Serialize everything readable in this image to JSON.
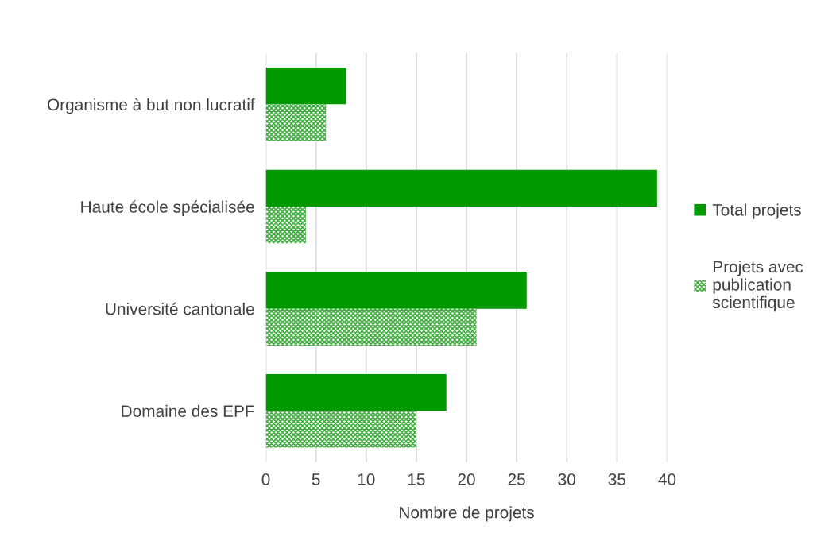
{
  "chart_data": {
    "type": "bar",
    "orientation": "horizontal",
    "xlabel": "Nombre de projets",
    "categories": [
      "Organisme à but non lucratif",
      "Haute école spécialisée",
      "Université cantonale",
      "Domaine des EPF"
    ],
    "series": [
      {
        "name": "Total projets",
        "color": "#009900",
        "values": [
          8,
          39,
          26,
          18
        ]
      },
      {
        "name": "Projets avec\npublication\nscientifique",
        "color": "#3fae3f",
        "values": [
          6,
          4,
          21,
          15
        ]
      }
    ],
    "xlim": [
      0,
      40
    ],
    "xticks": [
      0,
      5,
      10,
      15,
      20,
      25,
      30,
      35,
      40
    ],
    "grid": "x",
    "legend": "right"
  }
}
